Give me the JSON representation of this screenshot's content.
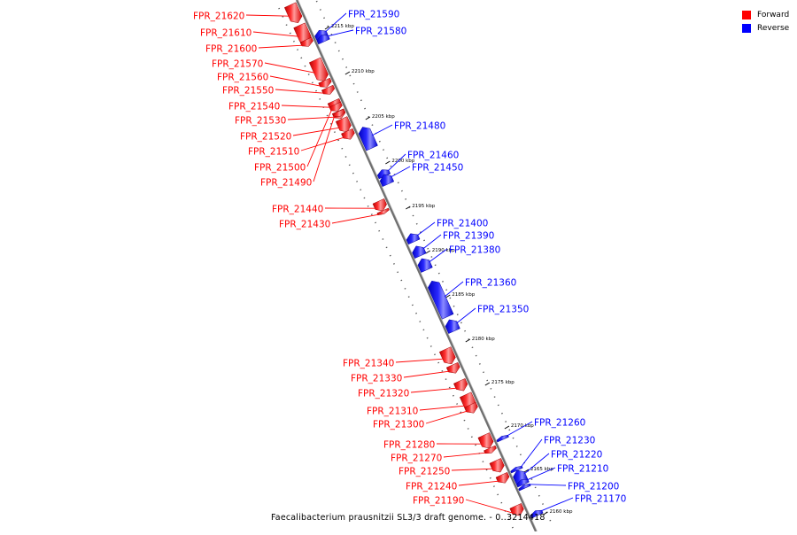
{
  "legend": {
    "items": [
      {
        "label": "Forward",
        "color": "#ff0000"
      },
      {
        "label": "Reverse",
        "color": "#0000ff"
      }
    ]
  },
  "caption": "Faecalibacterium prausnitzii SL3/3 draft genome. - 0..3214418",
  "axis": {
    "unit": "kbp",
    "ticks": [
      "2215 kbp",
      "2210 kbp",
      "2205 kbp",
      "2200 kbp",
      "2195 kbp",
      "2190 kbp",
      "2185 kbp",
      "2180 kbp",
      "2175 kbp",
      "2170 kbp",
      "2165 kbp",
      "2160 kbp"
    ]
  },
  "genes": [
    {
      "name": "FPR_21620",
      "strand": "forward"
    },
    {
      "name": "FPR_21610",
      "strand": "forward"
    },
    {
      "name": "FPR_21600",
      "strand": "forward"
    },
    {
      "name": "FPR_21590",
      "strand": "reverse"
    },
    {
      "name": "FPR_21580",
      "strand": "reverse"
    },
    {
      "name": "FPR_21570",
      "strand": "forward"
    },
    {
      "name": "FPR_21560",
      "strand": "forward"
    },
    {
      "name": "FPR_21550",
      "strand": "forward"
    },
    {
      "name": "FPR_21540",
      "strand": "forward"
    },
    {
      "name": "FPR_21530",
      "strand": "forward"
    },
    {
      "name": "FPR_21520",
      "strand": "forward"
    },
    {
      "name": "FPR_21510",
      "strand": "forward"
    },
    {
      "name": "FPR_21500",
      "strand": "forward"
    },
    {
      "name": "FPR_21490",
      "strand": "forward"
    },
    {
      "name": "FPR_21480",
      "strand": "reverse"
    },
    {
      "name": "FPR_21460",
      "strand": "reverse"
    },
    {
      "name": "FPR_21450",
      "strand": "reverse"
    },
    {
      "name": "FPR_21440",
      "strand": "forward"
    },
    {
      "name": "FPR_21430",
      "strand": "forward"
    },
    {
      "name": "FPR_21400",
      "strand": "reverse"
    },
    {
      "name": "FPR_21390",
      "strand": "reverse"
    },
    {
      "name": "FPR_21380",
      "strand": "reverse"
    },
    {
      "name": "FPR_21360",
      "strand": "reverse"
    },
    {
      "name": "FPR_21350",
      "strand": "reverse"
    },
    {
      "name": "FPR_21340",
      "strand": "forward"
    },
    {
      "name": "FPR_21330",
      "strand": "forward"
    },
    {
      "name": "FPR_21320",
      "strand": "forward"
    },
    {
      "name": "FPR_21310",
      "strand": "forward"
    },
    {
      "name": "FPR_21300",
      "strand": "forward"
    },
    {
      "name": "FPR_21260",
      "strand": "reverse"
    },
    {
      "name": "FPR_21230",
      "strand": "reverse"
    },
    {
      "name": "FPR_21220",
      "strand": "reverse"
    },
    {
      "name": "FPR_21210",
      "strand": "reverse"
    },
    {
      "name": "FPR_21200",
      "strand": "reverse"
    },
    {
      "name": "FPR_21280",
      "strand": "forward"
    },
    {
      "name": "FPR_21270",
      "strand": "forward"
    },
    {
      "name": "FPR_21250",
      "strand": "forward"
    },
    {
      "name": "FPR_21240",
      "strand": "forward"
    },
    {
      "name": "FPR_21190",
      "strand": "forward"
    },
    {
      "name": "FPR_21170",
      "strand": "reverse"
    }
  ]
}
